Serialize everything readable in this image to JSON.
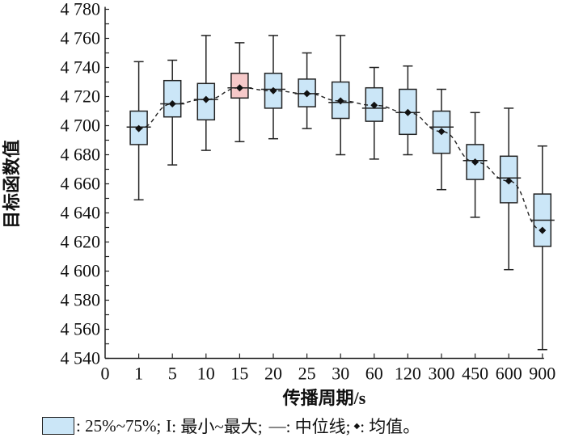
{
  "chart_data": {
    "type": "box",
    "title": "",
    "xlabel": "传播周期/s",
    "ylabel": "目标函数值",
    "ylim": [
      4540,
      4780
    ],
    "yticks": [
      4540,
      4560,
      4580,
      4600,
      4620,
      4640,
      4660,
      4680,
      4700,
      4720,
      4740,
      4760,
      4780
    ],
    "ytick_labels": [
      "4 540",
      "4 560",
      "4 580",
      "4 600",
      "4 620",
      "4 640",
      "4 660",
      "4 680",
      "4 700",
      "4 720",
      "4 740",
      "4 760",
      "4 780"
    ],
    "categories": [
      "0",
      "1",
      "5",
      "10",
      "15",
      "20",
      "25",
      "30",
      "60",
      "120",
      "300",
      "450",
      "600",
      "900"
    ],
    "boxes": [
      {
        "x": "1",
        "min": 4649,
        "q1": 4687,
        "median": 4699,
        "q3": 4710,
        "max": 4744,
        "mean": 4698
      },
      {
        "x": "5",
        "min": 4673,
        "q1": 4706,
        "median": 4715,
        "q3": 4731,
        "max": 4745,
        "mean": 4715
      },
      {
        "x": "10",
        "min": 4683,
        "q1": 4704,
        "median": 4718,
        "q3": 4729,
        "max": 4762,
        "mean": 4718
      },
      {
        "x": "15",
        "min": 4689,
        "q1": 4719,
        "median": 4726,
        "q3": 4736,
        "max": 4757,
        "mean": 4726,
        "highlight": true
      },
      {
        "x": "20",
        "min": 4691,
        "q1": 4712,
        "median": 4725,
        "q3": 4736,
        "max": 4762,
        "mean": 4724
      },
      {
        "x": "25",
        "min": 4698,
        "q1": 4713,
        "median": 4722,
        "q3": 4732,
        "max": 4750,
        "mean": 4722
      },
      {
        "x": "30",
        "min": 4680,
        "q1": 4705,
        "median": 4716,
        "q3": 4730,
        "max": 4762,
        "mean": 4717
      },
      {
        "x": "60",
        "min": 4677,
        "q1": 4703,
        "median": 4712,
        "q3": 4726,
        "max": 4740,
        "mean": 4714
      },
      {
        "x": "120",
        "min": 4680,
        "q1": 4694,
        "median": 4709,
        "q3": 4725,
        "max": 4741,
        "mean": 4709
      },
      {
        "x": "300",
        "min": 4656,
        "q1": 4681,
        "median": 4699,
        "q3": 4710,
        "max": 4725,
        "mean": 4696
      },
      {
        "x": "450",
        "min": 4637,
        "q1": 4663,
        "median": 4676,
        "q3": 4687,
        "max": 4709,
        "mean": 4675
      },
      {
        "x": "600",
        "min": 4601,
        "q1": 4647,
        "median": 4664,
        "q3": 4679,
        "max": 4712,
        "mean": 4662
      },
      {
        "x": "900",
        "min": 4546,
        "q1": 4617,
        "median": 4635,
        "q3": 4653,
        "max": 4686,
        "mean": 4628
      }
    ],
    "legend": {
      "box": ": 25%~75%;",
      "whisker_symbol": "I",
      "whisker": ": 最小~最大;",
      "median_symbol": "—",
      "median": ": 中位线;",
      "mean_symbol": "◆",
      "mean": ": 均值。"
    },
    "colors": {
      "box": "#cbe6f7",
      "highlight": "#f6c9c9",
      "line": "#222222"
    }
  }
}
